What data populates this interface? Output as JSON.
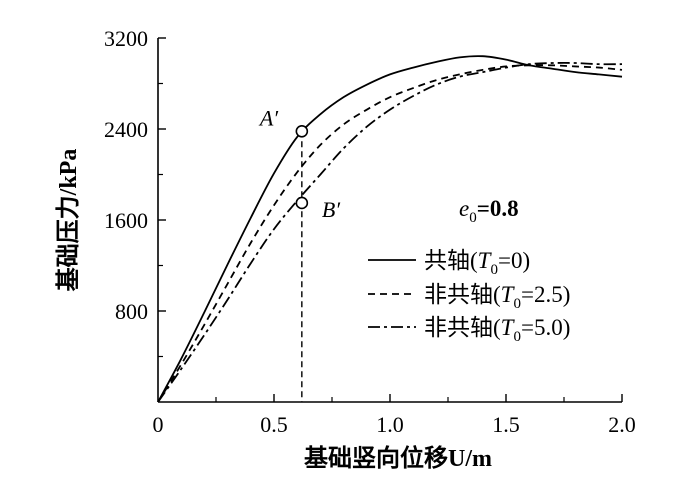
{
  "chart_data": {
    "type": "line",
    "xlabel": "基础竖向位移U/m",
    "ylabel": "基础压力/kPa",
    "xlim": [
      0,
      2.0
    ],
    "ylim": [
      0,
      3200
    ],
    "x_ticks": [
      "0",
      "0.5",
      "1.0",
      "1.5",
      "2.0"
    ],
    "y_ticks": [
      "800",
      "1600",
      "2400",
      "3200"
    ],
    "grid": false,
    "legend_position": "lower-right",
    "parameter_text": {
      "label": "e",
      "sub": "0",
      "value": "=0.8"
    },
    "series": [
      {
        "name": "共轴(T0=0)",
        "legend": {
          "pre": "共轴(",
          "T": "T",
          "sub": "0",
          "post": "=0)"
        },
        "style": "solid",
        "points": [
          [
            0,
            0
          ],
          [
            0.1,
            380
          ],
          [
            0.2,
            790
          ],
          [
            0.3,
            1210
          ],
          [
            0.4,
            1620
          ],
          [
            0.5,
            2010
          ],
          [
            0.6,
            2330
          ],
          [
            0.7,
            2530
          ],
          [
            0.8,
            2680
          ],
          [
            0.9,
            2790
          ],
          [
            1.0,
            2880
          ],
          [
            1.1,
            2940
          ],
          [
            1.2,
            2990
          ],
          [
            1.3,
            3030
          ],
          [
            1.4,
            3040
          ],
          [
            1.5,
            3010
          ],
          [
            1.6,
            2960
          ],
          [
            1.7,
            2930
          ],
          [
            1.8,
            2900
          ],
          [
            1.9,
            2880
          ],
          [
            2.0,
            2860
          ]
        ]
      },
      {
        "name": "非共轴(T0=2.5)",
        "legend": {
          "pre": "非共轴(",
          "T": "T",
          "sub": "0",
          "post": "=2.5)"
        },
        "style": "dashed",
        "points": [
          [
            0,
            0
          ],
          [
            0.1,
            330
          ],
          [
            0.2,
            680
          ],
          [
            0.3,
            1040
          ],
          [
            0.4,
            1400
          ],
          [
            0.5,
            1730
          ],
          [
            0.6,
            2020
          ],
          [
            0.7,
            2260
          ],
          [
            0.8,
            2440
          ],
          [
            0.9,
            2570
          ],
          [
            1.0,
            2680
          ],
          [
            1.1,
            2760
          ],
          [
            1.2,
            2830
          ],
          [
            1.3,
            2880
          ],
          [
            1.4,
            2920
          ],
          [
            1.5,
            2950
          ],
          [
            1.6,
            2960
          ],
          [
            1.7,
            2960
          ],
          [
            1.8,
            2950
          ],
          [
            1.9,
            2940
          ],
          [
            2.0,
            2920
          ]
        ]
      },
      {
        "name": "非共轴(T0=5.0)",
        "legend": {
          "pre": "非共轴(",
          "T": "T",
          "sub": "0",
          "post": "=5.0)"
        },
        "style": "dashdot",
        "points": [
          [
            0,
            0
          ],
          [
            0.1,
            290
          ],
          [
            0.2,
            590
          ],
          [
            0.3,
            900
          ],
          [
            0.4,
            1220
          ],
          [
            0.5,
            1520
          ],
          [
            0.6,
            1770
          ],
          [
            0.7,
            2000
          ],
          [
            0.8,
            2230
          ],
          [
            0.9,
            2420
          ],
          [
            1.0,
            2570
          ],
          [
            1.1,
            2690
          ],
          [
            1.2,
            2790
          ],
          [
            1.3,
            2860
          ],
          [
            1.4,
            2900
          ],
          [
            1.5,
            2940
          ],
          [
            1.6,
            2970
          ],
          [
            1.7,
            2980
          ],
          [
            1.8,
            2980
          ],
          [
            1.9,
            2970
          ],
          [
            2.0,
            2970
          ]
        ]
      }
    ],
    "annotations": [
      {
        "label": "A′",
        "x": 0.62,
        "y": 2380
      },
      {
        "label": "B′",
        "x": 0.62,
        "y": 1750
      }
    ],
    "reference_line": {
      "x": 0.62
    }
  }
}
